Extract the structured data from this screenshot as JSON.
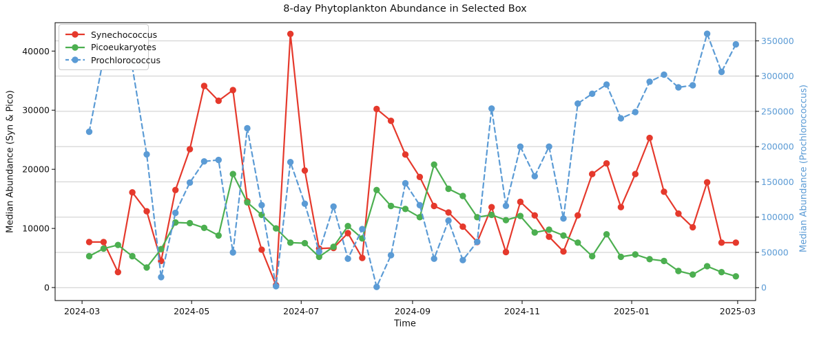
{
  "chart_data": {
    "type": "line",
    "title": "8-day Phytoplankton Abundance in Selected Box",
    "xlabel": "Time",
    "ylabel_left": "Median Abundance (Syn & Pico)",
    "ylabel_right": "Median Abundance (Prochlorococcus)",
    "legend_position": "upper left",
    "grid": {
      "horizontal": true,
      "vertical": false,
      "color": "#cbcbcb"
    },
    "axis_color": "#000000",
    "right_axis_color": "#5b9bd5",
    "xlim_dates": [
      "2024-02-15",
      "2025-03-11"
    ],
    "x_ticks": [
      {
        "date": "2024-03-01",
        "label": "2024-03"
      },
      {
        "date": "2024-05-01",
        "label": "2024-05"
      },
      {
        "date": "2024-07-01",
        "label": "2024-07"
      },
      {
        "date": "2024-09-01",
        "label": "2024-09"
      },
      {
        "date": "2024-11-01",
        "label": "2024-11"
      },
      {
        "date": "2025-01-01",
        "label": "2025-01"
      },
      {
        "date": "2025-03-01",
        "label": "2025-03"
      }
    ],
    "y_left_axis": {
      "ticks": [
        0,
        10000,
        20000,
        30000,
        40000
      ],
      "ylim": [
        -2200,
        44800
      ]
    },
    "y_right_axis": {
      "ticks": [
        0,
        50000,
        100000,
        150000,
        200000,
        250000,
        300000,
        350000
      ],
      "ylim": [
        -18300,
        375700
      ]
    },
    "x_dates": [
      "2024-03-05",
      "2024-03-13",
      "2024-03-21",
      "2024-03-29",
      "2024-04-06",
      "2024-04-14",
      "2024-04-22",
      "2024-04-30",
      "2024-05-08",
      "2024-05-16",
      "2024-05-24",
      "2024-06-01",
      "2024-06-09",
      "2024-06-17",
      "2024-06-25",
      "2024-07-03",
      "2024-07-11",
      "2024-07-19",
      "2024-07-27",
      "2024-08-04",
      "2024-08-12",
      "2024-08-20",
      "2024-08-28",
      "2024-09-05",
      "2024-09-13",
      "2024-09-21",
      "2024-09-29",
      "2024-10-07",
      "2024-10-15",
      "2024-10-23",
      "2024-10-31",
      "2024-11-08",
      "2024-11-16",
      "2024-11-24",
      "2024-12-02",
      "2024-12-10",
      "2024-12-18",
      "2024-12-26",
      "2025-01-03",
      "2025-01-11",
      "2025-01-19",
      "2025-01-27",
      "2025-02-04",
      "2025-02-12",
      "2025-02-20",
      "2025-02-28"
    ],
    "series": [
      {
        "name": "Synechococcus",
        "axis": "left",
        "color": "#e5392c",
        "style": "solid",
        "values": [
          7700,
          7700,
          2600,
          16100,
          12900,
          4500,
          16500,
          23400,
          34100,
          31600,
          33400,
          14600,
          6400,
          400,
          42900,
          19800,
          6600,
          6700,
          9200,
          5000,
          30200,
          28200,
          22500,
          18700,
          13800,
          12700,
          10300,
          7700,
          13600,
          6000,
          14500,
          12200,
          8600,
          6100,
          12200,
          19200,
          21000,
          13600,
          19200,
          25300,
          16200,
          12500,
          10200,
          17800,
          7600,
          7600
        ]
      },
      {
        "name": "Picoeukaryotes",
        "axis": "left",
        "color": "#4caf50",
        "style": "solid",
        "values": [
          5300,
          6600,
          7200,
          5300,
          3400,
          6500,
          11000,
          10900,
          10100,
          8800,
          19200,
          14400,
          12300,
          10000,
          7600,
          7500,
          5200,
          6900,
          10400,
          8300,
          16500,
          13800,
          13300,
          11900,
          20800,
          16700,
          15500,
          11900,
          12300,
          11400,
          12100,
          9300,
          9800,
          8800,
          7600,
          5300,
          9000,
          5200,
          5600,
          4800,
          4500,
          2800,
          2200,
          3600,
          2600,
          1900
        ]
      },
      {
        "name": "Prochlorococcus",
        "axis": "right",
        "color": "#5b9bd5",
        "style": "dashed",
        "values": [
          221000,
          326000,
          339000,
          313000,
          189000,
          15000,
          106000,
          149000,
          179000,
          181000,
          50000,
          226000,
          117000,
          2000,
          178000,
          119000,
          51000,
          115000,
          41000,
          83000,
          1000,
          46000,
          148000,
          117000,
          41000,
          95000,
          39000,
          65000,
          254000,
          116000,
          200000,
          158000,
          200000,
          98000,
          261000,
          275000,
          288000,
          240000,
          249000,
          292000,
          302000,
          284000,
          287000,
          360000,
          306000,
          345000
        ]
      }
    ]
  }
}
